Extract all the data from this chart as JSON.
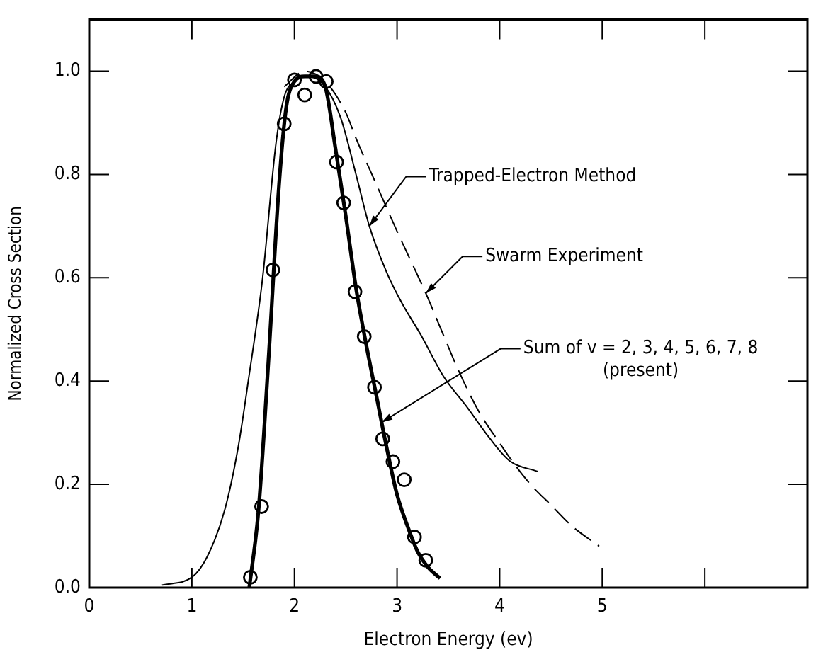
{
  "chart_data": {
    "type": "line",
    "xlabel": "Electron Energy (ev)",
    "ylabel": "Normalized Cross Section",
    "xlim": [
      0,
      7
    ],
    "xticks": [
      0,
      1,
      2,
      3,
      4,
      5,
      {
        "value": 6,
        "label": null
      },
      {
        "value": 7,
        "label": null
      }
    ],
    "ylim": [
      0,
      1.1
    ],
    "yticks": [
      {
        "value": 0,
        "label": "0.0"
      },
      0.2,
      0.4,
      0.6,
      0.8,
      {
        "value": 1,
        "label": "1.0"
      }
    ],
    "grid": false,
    "legend": false,
    "series": [
      {
        "color": "#000000",
        "marker": "none",
        "line_style": "solid",
        "x": [
          0.71,
          1.0,
          1.15,
          1.32,
          1.45,
          1.55,
          1.69,
          1.82,
          1.9,
          2.0,
          2.13,
          2.3,
          2.45,
          2.6,
          2.73,
          2.9,
          3.05,
          3.23,
          3.45,
          3.68,
          3.9,
          4.1,
          4.37
        ],
        "values": [
          0.005,
          0.02,
          0.06,
          0.15,
          0.27,
          0.4,
          0.6,
          0.86,
          0.95,
          0.98,
          0.99,
          0.97,
          0.91,
          0.8,
          0.7,
          0.61,
          0.55,
          0.49,
          0.41,
          0.35,
          0.29,
          0.245,
          0.225
        ]
      },
      {
        "color": "#000000",
        "marker": "none",
        "line_style": "dashed",
        "x": [
          1.9,
          2.1,
          2.3,
          2.5,
          2.6,
          2.8,
          3.0,
          3.28,
          3.45,
          3.6,
          3.8,
          4.0,
          4.14,
          4.3,
          4.5,
          4.7,
          4.97
        ],
        "values": [
          0.97,
          1.0,
          0.98,
          0.92,
          0.87,
          0.78,
          0.69,
          0.57,
          0.49,
          0.42,
          0.34,
          0.28,
          0.24,
          0.2,
          0.16,
          0.12,
          0.08
        ]
      },
      {
        "color": "#000000",
        "marker": "none",
        "line_style": "solid",
        "x": [
          1.56,
          1.65,
          1.75,
          1.85,
          1.92,
          2.0,
          2.1,
          2.2,
          2.3,
          2.4,
          2.5,
          2.6,
          2.7,
          2.8,
          2.9,
          3.0,
          3.1,
          3.2,
          3.3,
          3.42
        ],
        "values": [
          0,
          0.15,
          0.45,
          0.78,
          0.93,
          0.98,
          0.99,
          0.99,
          0.97,
          0.85,
          0.72,
          0.58,
          0.47,
          0.37,
          0.27,
          0.18,
          0.12,
          0.07,
          0.04,
          0.018
        ]
      },
      {
        "type": "scatter",
        "color": "#000000",
        "marker": "circle",
        "x": [
          1.57,
          1.68,
          1.79,
          1.9,
          2.0,
          2.1,
          2.21,
          2.31,
          2.41,
          2.48,
          2.59,
          2.68,
          2.78,
          2.86,
          2.96,
          3.07,
          3.17,
          3.28
        ],
        "values": [
          0.02,
          0.157,
          0.615,
          0.898,
          0.983,
          0.954,
          0.99,
          0.98,
          0.824,
          0.745,
          0.573,
          0.486,
          0.388,
          0.288,
          0.244,
          0.209,
          0.098,
          0.053
        ]
      }
    ],
    "annotations": [
      {
        "text": "Trapped-Electron Method",
        "x": 2.73,
        "y": 0.7
      },
      {
        "text": "Swarm Experiment",
        "x": 3.28,
        "y": 0.57
      },
      {
        "text": "Sum of v = 2, 3, 4, 5, 6, 7, 8\n(present)",
        "x": 2.85,
        "y": 0.32
      }
    ]
  }
}
